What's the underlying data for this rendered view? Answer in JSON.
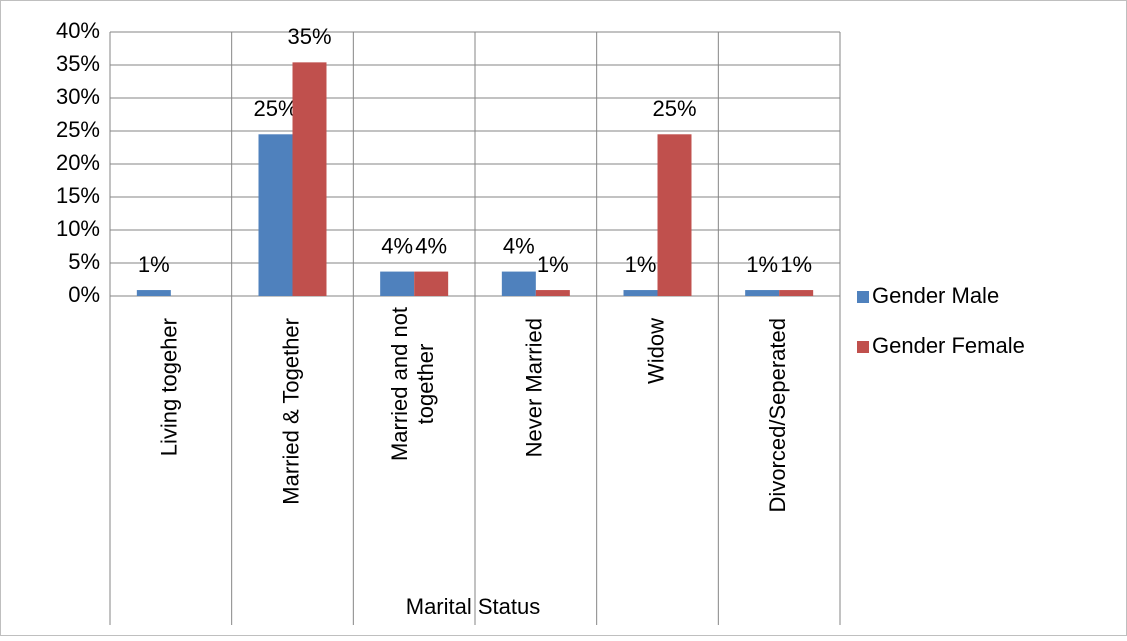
{
  "chart_data": {
    "type": "bar",
    "x_label": "Marital Status",
    "categories": [
      "Living togeher",
      "Married & Together",
      "Married and not together",
      "Never Married",
      "Widow",
      "Divorced/Seperated"
    ],
    "series": [
      {
        "name": "Gender Male",
        "color": "#4f81bd",
        "values": [
          0.9,
          24.5,
          3.7,
          3.7,
          0.9,
          0.9
        ],
        "value_labels": [
          "1%",
          "25%",
          "4%",
          "4%",
          "1%",
          "1%"
        ]
      },
      {
        "name": "Gender Female",
        "color": "#c0504d",
        "values": [
          null,
          35.4,
          3.7,
          0.9,
          24.5,
          0.9
        ],
        "value_labels": [
          null,
          "35%",
          "4%",
          "1%",
          "25%",
          "1%"
        ]
      }
    ],
    "ylim": [
      0,
      40
    ],
    "yticks": [
      {
        "value": 0,
        "label": "0%"
      },
      {
        "value": 5,
        "label": "5%"
      },
      {
        "value": 10,
        "label": "10%"
      },
      {
        "value": 15,
        "label": "15%"
      },
      {
        "value": 20,
        "label": "20%"
      },
      {
        "value": 25,
        "label": "25%"
      },
      {
        "value": 30,
        "label": "30%"
      },
      {
        "value": 35,
        "label": "35%"
      },
      {
        "value": 40,
        "label": "40%"
      }
    ],
    "grid": true,
    "legend": "right"
  }
}
